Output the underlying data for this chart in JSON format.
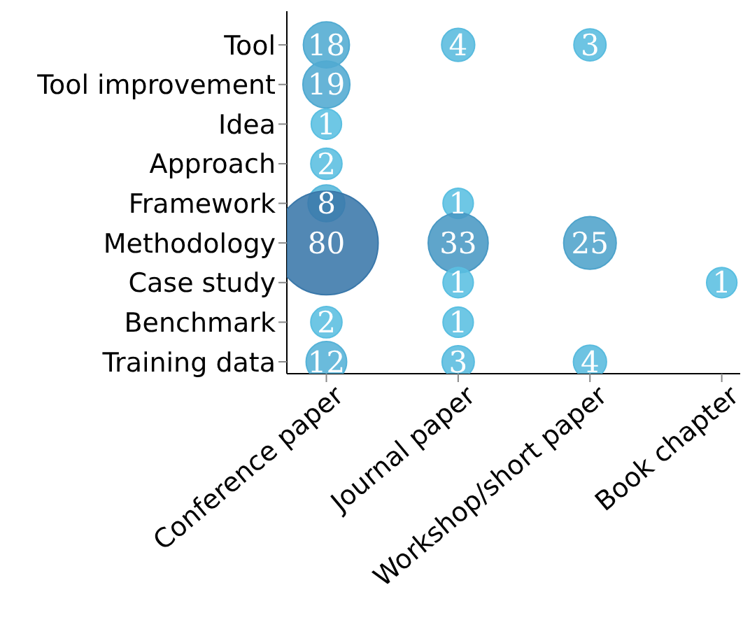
{
  "chart_data": {
    "type": "heatmap",
    "categories": [
      "Conference paper",
      "Journal paper",
      "Workshop/short paper",
      "Book chapter"
    ],
    "y_categories": [
      "Tool",
      "Tool improvement",
      "Idea",
      "Approach",
      "Framework",
      "Methodology",
      "Case study",
      "Benchmark",
      "Training data"
    ],
    "cells": [
      [
        18,
        4,
        3,
        null
      ],
      [
        19,
        null,
        null,
        null
      ],
      [
        1,
        null,
        null,
        null
      ],
      [
        2,
        null,
        null,
        null
      ],
      [
        8,
        1,
        null,
        null
      ],
      [
        80,
        33,
        25,
        null
      ],
      [
        null,
        1,
        null,
        1
      ],
      [
        2,
        1,
        null,
        null
      ],
      [
        12,
        3,
        4,
        null
      ]
    ],
    "data_labels": true
  }
}
